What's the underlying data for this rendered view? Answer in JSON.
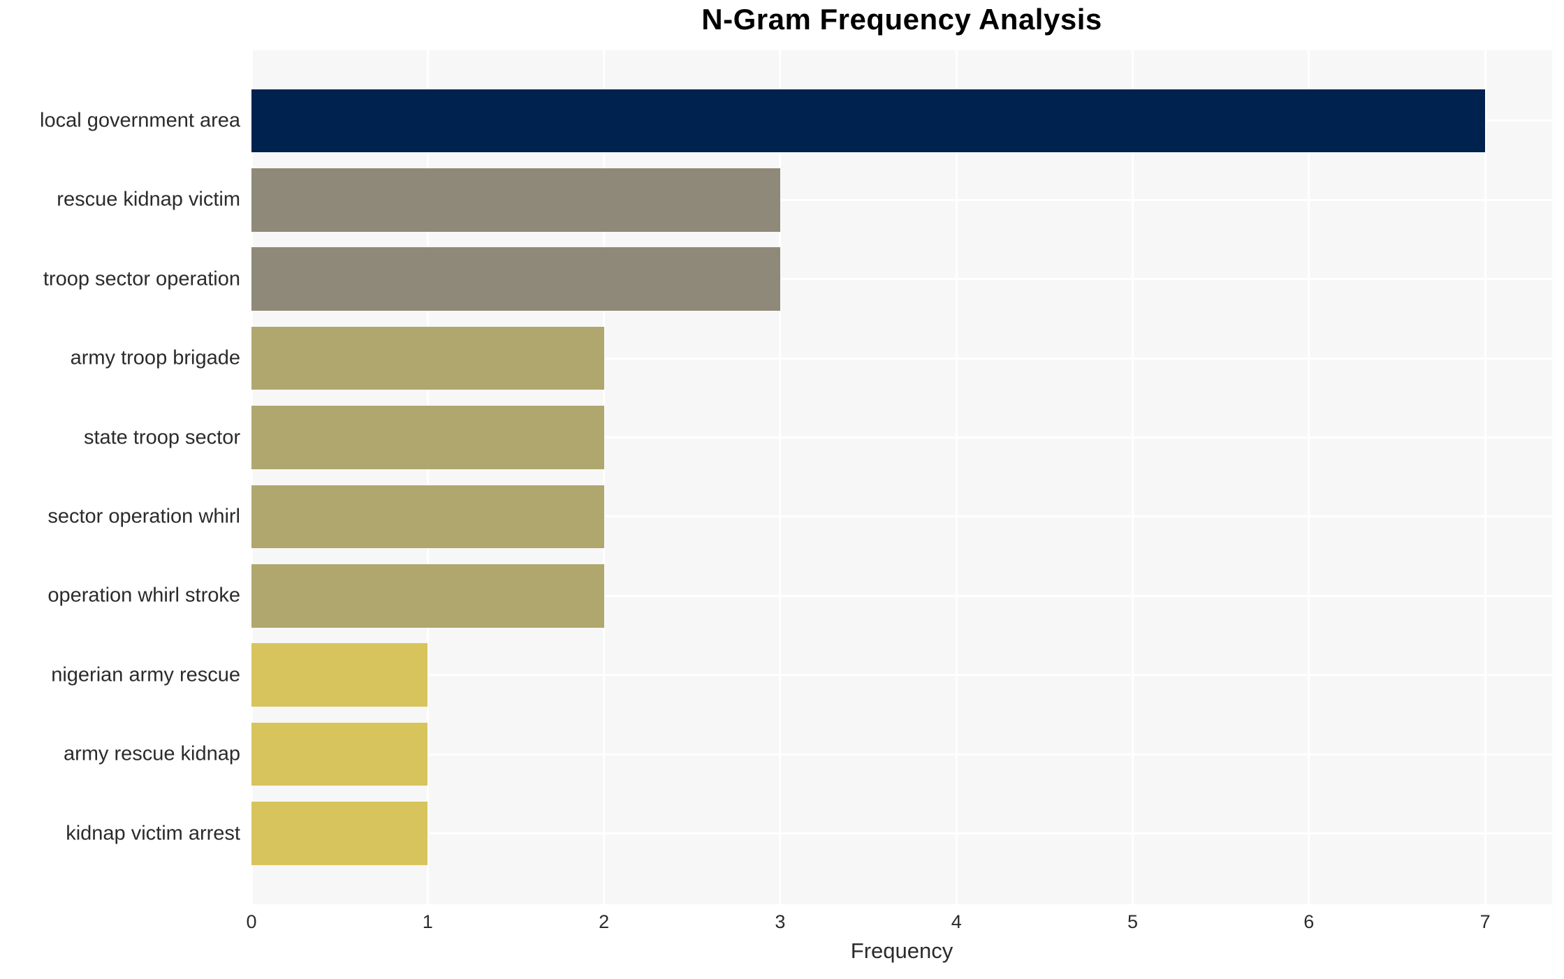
{
  "chart_data": {
    "type": "bar",
    "orientation": "horizontal",
    "title": "N-Gram Frequency Analysis",
    "xlabel": "Frequency",
    "ylabel": "",
    "categories": [
      "local government area",
      "rescue kidnap victim",
      "troop sector operation",
      "army troop brigade",
      "state troop sector",
      "sector operation whirl",
      "operation whirl stroke",
      "nigerian army rescue",
      "army rescue kidnap",
      "kidnap victim arrest"
    ],
    "values": [
      7,
      3,
      3,
      2,
      2,
      2,
      2,
      1,
      1,
      1
    ],
    "bar_colors": [
      "#00224e",
      "#8e8978",
      "#8e8978",
      "#b0a76e",
      "#b0a76e",
      "#b0a76e",
      "#b0a76e",
      "#d8c45c",
      "#d8c45c",
      "#d8c45c"
    ],
    "x_ticks": [
      "0",
      "1",
      "2",
      "3",
      "4",
      "5",
      "6",
      "7"
    ],
    "xlim": [
      0,
      7.38
    ],
    "grid": true,
    "legend": false,
    "panel_bg": "#f7f7f7",
    "grid_color": "#ffffff",
    "text_color": "#2b2b2b",
    "title_color": "#000000"
  }
}
